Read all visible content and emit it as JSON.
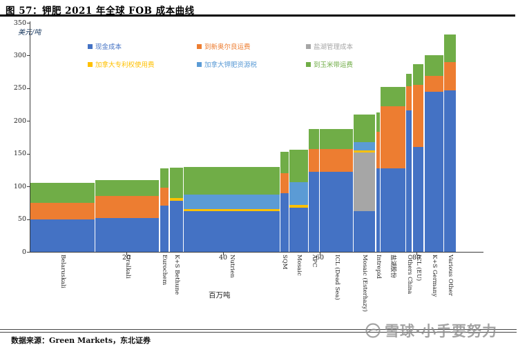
{
  "page": {
    "title": "图 57：钾肥 2021 年全球 FOB 成本曲线",
    "source": "数据来源：Green Markets，东北证券",
    "watermark": "雪球·小手要努力"
  },
  "chart_data": {
    "type": "bar",
    "variant": "stacked-variable-width-cost-curve",
    "title": "钾肥 2021 年全球 FOB 成本曲线",
    "ylabel": "美元/吨",
    "xlabel": "百万吨",
    "ylim": [
      0,
      350
    ],
    "yticks": [
      0,
      50,
      100,
      150,
      200,
      250,
      300,
      350
    ],
    "xticks": [
      20,
      40,
      60,
      80
    ],
    "grid": false,
    "legend_position": "top-inside",
    "series": [
      {
        "key": "cash",
        "label": "现金成本",
        "color": "#4472C4"
      },
      {
        "key": "orleans",
        "label": "到新奥尔良运费",
        "color": "#ED7D31"
      },
      {
        "key": "brine",
        "label": "盐湖管理成本",
        "color": "#A6A6A6"
      },
      {
        "key": "royalty",
        "label": "加拿大专利权使用费",
        "color": "#FFC000"
      },
      {
        "key": "resource",
        "label": "加拿大钾肥资源税",
        "color": "#5B9BD5"
      },
      {
        "key": "corn",
        "label": "到玉米带运费",
        "color": "#70AD47"
      }
    ],
    "x_unit": "百万吨 (cumulative capacity)",
    "y_unit": "美元/吨",
    "companies": [
      {
        "name": "Belaruskali",
        "capacity_mt": 13.4,
        "total": 105,
        "segments": [
          [
            "cash",
            50
          ],
          [
            "orleans",
            25
          ],
          [
            "corn",
            30
          ]
        ]
      },
      {
        "name": "Uralkali",
        "capacity_mt": 13.4,
        "total": 110,
        "segments": [
          [
            "cash",
            52
          ],
          [
            "orleans",
            33
          ],
          [
            "corn",
            25
          ]
        ]
      },
      {
        "name": "Eurochem",
        "capacity_mt": 2.0,
        "total": 128,
        "segments": [
          [
            "cash",
            71
          ],
          [
            "orleans",
            27
          ],
          [
            "corn",
            30
          ]
        ]
      },
      {
        "name": "K+S Bethune",
        "capacity_mt": 2.9,
        "total": 129,
        "segments": [
          [
            "cash",
            78
          ],
          [
            "royalty",
            4
          ],
          [
            "corn",
            47
          ]
        ]
      },
      {
        "name": "Nutrien",
        "capacity_mt": 20.0,
        "total": 130,
        "segments": [
          [
            "cash",
            62
          ],
          [
            "royalty",
            3
          ],
          [
            "resource",
            22
          ],
          [
            "corn",
            43
          ]
        ]
      },
      {
        "name": "SQM",
        "capacity_mt": 1.9,
        "total": 153,
        "segments": [
          [
            "cash",
            90
          ],
          [
            "orleans",
            30
          ],
          [
            "corn",
            33
          ]
        ]
      },
      {
        "name": "Mosaic",
        "capacity_mt": 4.0,
        "total": 156,
        "segments": [
          [
            "cash",
            67
          ],
          [
            "royalty",
            5
          ],
          [
            "resource",
            34
          ],
          [
            "corn",
            50
          ]
        ]
      },
      {
        "name": "APC",
        "capacity_mt": 2.3,
        "total": 188,
        "segments": [
          [
            "cash",
            122
          ],
          [
            "orleans",
            35
          ],
          [
            "corn",
            31
          ]
        ]
      },
      {
        "name": "ICL (Dead Sea)",
        "capacity_mt": 7.0,
        "total": 188,
        "segments": [
          [
            "cash",
            122
          ],
          [
            "orleans",
            35
          ],
          [
            "corn",
            31
          ]
        ]
      },
      {
        "name": "Mosaic (Esterhazy)",
        "capacity_mt": 4.6,
        "total": 210,
        "segments": [
          [
            "cash",
            62
          ],
          [
            "brine",
            90
          ],
          [
            "royalty",
            3
          ],
          [
            "resource",
            13
          ],
          [
            "corn",
            42
          ]
        ]
      },
      {
        "name": "Intrepid",
        "capacity_mt": 0.9,
        "total": 213,
        "segments": [
          [
            "cash",
            128
          ],
          [
            "orleans",
            55
          ],
          [
            "corn",
            30
          ]
        ]
      },
      {
        "name": "盐湖股份",
        "capacity_mt": 5.3,
        "total": 252,
        "segments": [
          [
            "cash",
            128
          ],
          [
            "orleans",
            94
          ],
          [
            "corn",
            30
          ]
        ]
      },
      {
        "name": "Others China",
        "capacity_mt": 1.4,
        "total": 272,
        "segments": [
          [
            "cash",
            216
          ],
          [
            "orleans",
            37
          ],
          [
            "corn",
            19
          ]
        ]
      },
      {
        "name": "ICL (EU)",
        "capacity_mt": 2.4,
        "total": 287,
        "segments": [
          [
            "cash",
            160
          ],
          [
            "orleans",
            95
          ],
          [
            "corn",
            32
          ]
        ]
      },
      {
        "name": "K+S Germany",
        "capacity_mt": 4.1,
        "total": 300,
        "segments": [
          [
            "cash",
            245
          ],
          [
            "orleans",
            24
          ],
          [
            "corn",
            31
          ]
        ]
      },
      {
        "name": "Various Other",
        "capacity_mt": 2.6,
        "total": 332,
        "segments": [
          [
            "cash",
            247
          ],
          [
            "orleans",
            43
          ],
          [
            "corn",
            42
          ]
        ]
      }
    ]
  }
}
